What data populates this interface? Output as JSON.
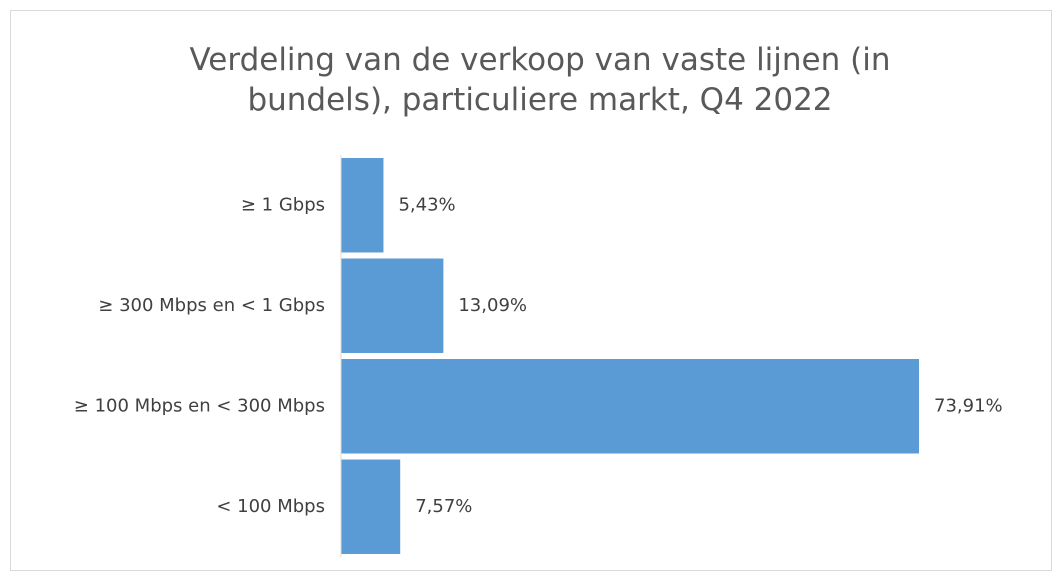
{
  "chart_data": {
    "type": "hbar",
    "title": "Verdeling van de verkoop van vaste lijnen (in bundels), particuliere markt, Q4 2022",
    "categories": [
      "≥ 1 Gbps",
      "≥ 300 Mbps en < 1 Gbps",
      "≥ 100 Mbps en < 300 Mbps",
      "< 100 Mbps"
    ],
    "values": [
      5.43,
      13.09,
      73.91,
      7.57
    ],
    "value_labels": [
      "5,43%",
      "13,09%",
      "73,91%",
      "7,57%"
    ],
    "color": "#5b9bd5"
  }
}
